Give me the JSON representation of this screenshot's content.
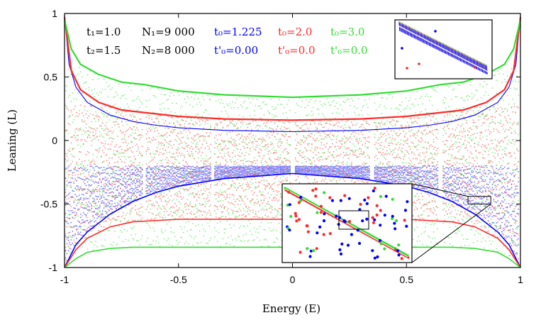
{
  "chart_data": {
    "type": "scatter",
    "xlabel": "Energy (E)",
    "ylabel": "Leaning (L)",
    "xlim": [
      -1,
      1
    ],
    "ylim": [
      -1,
      1
    ],
    "xticks": [
      "-1",
      "-0.5",
      "0",
      "0.5",
      "1"
    ],
    "yticks": [
      "-1",
      "-0.5",
      "0",
      "0.5",
      "1"
    ],
    "grid": false,
    "legend_placement": "top-left",
    "legend": {
      "row1": [
        {
          "text": "t₁=1.0",
          "color": "#000000"
        },
        {
          "text": "N₁=9 000",
          "color": "#000000"
        },
        {
          "text": "t₀=1.225",
          "color": "#0000ff"
        },
        {
          "text": "t₀=2.0",
          "color": "#ff2a2a"
        },
        {
          "text": "t₀=3.0",
          "color": "#33dd33"
        }
      ],
      "row2": [
        {
          "text": "t₂=1.5",
          "color": "#000000"
        },
        {
          "text": "N₂=8 000",
          "color": "#000000"
        },
        {
          "text": "t'₀=0.00",
          "color": "#0000ff"
        },
        {
          "text": "t'₀=0.0",
          "color": "#ff2a2a"
        },
        {
          "text": "t'₀=0.0",
          "color": "#33dd33"
        }
      ]
    },
    "series": [
      {
        "color": "#0000ff",
        "upper_curve": [
          [
            -1.0,
            0.99
          ],
          [
            -0.98,
            0.6
          ],
          [
            -0.95,
            0.42
          ],
          [
            -0.9,
            0.3
          ],
          [
            -0.8,
            0.2
          ],
          [
            -0.7,
            0.15
          ],
          [
            -0.6,
            0.12
          ],
          [
            -0.5,
            0.1
          ],
          [
            -0.3,
            0.08
          ],
          [
            0.0,
            0.07
          ],
          [
            0.3,
            0.08
          ],
          [
            0.5,
            0.1
          ],
          [
            0.6,
            0.12
          ],
          [
            0.7,
            0.15
          ],
          [
            0.8,
            0.2
          ],
          [
            0.9,
            0.3
          ],
          [
            0.95,
            0.42
          ],
          [
            0.98,
            0.6
          ],
          [
            1.0,
            0.99
          ]
        ],
        "lower_curve": [
          [
            -1.0,
            -1.0
          ],
          [
            -0.95,
            -0.82
          ],
          [
            -0.9,
            -0.72
          ],
          [
            -0.8,
            -0.58
          ],
          [
            -0.7,
            -0.48
          ],
          [
            -0.6,
            -0.41
          ],
          [
            -0.5,
            -0.36
          ],
          [
            -0.3,
            -0.3
          ],
          [
            0.0,
            -0.26
          ],
          [
            0.3,
            -0.3
          ],
          [
            0.5,
            -0.36
          ],
          [
            0.6,
            -0.41
          ],
          [
            0.7,
            -0.48
          ],
          [
            0.8,
            -0.58
          ],
          [
            0.9,
            -0.72
          ],
          [
            0.95,
            -0.82
          ],
          [
            1.0,
            -1.0
          ]
        ],
        "band": [
          -0.2,
          -0.95
        ]
      },
      {
        "color": "#ff2a2a",
        "upper_curve": [
          [
            -1.0,
            0.97
          ],
          [
            -0.97,
            0.55
          ],
          [
            -0.93,
            0.4
          ],
          [
            -0.85,
            0.3
          ],
          [
            -0.75,
            0.24
          ],
          [
            -0.65,
            0.22
          ],
          [
            -0.5,
            0.19
          ],
          [
            -0.3,
            0.17
          ],
          [
            0.0,
            0.16
          ],
          [
            0.3,
            0.17
          ],
          [
            0.5,
            0.19
          ],
          [
            0.65,
            0.22
          ],
          [
            0.75,
            0.24
          ],
          [
            0.85,
            0.3
          ],
          [
            0.93,
            0.4
          ],
          [
            0.97,
            0.55
          ],
          [
            1.0,
            0.97
          ]
        ],
        "lower_curve": [
          [
            -1.0,
            -1.0
          ],
          [
            -0.95,
            -0.86
          ],
          [
            -0.9,
            -0.77
          ],
          [
            -0.8,
            -0.68
          ],
          [
            -0.7,
            -0.64
          ],
          [
            -0.5,
            -0.62
          ],
          [
            -0.3,
            -0.62
          ],
          [
            0.0,
            -0.62
          ],
          [
            0.3,
            -0.62
          ],
          [
            0.5,
            -0.62
          ],
          [
            0.7,
            -0.64
          ],
          [
            0.8,
            -0.68
          ],
          [
            0.9,
            -0.77
          ],
          [
            0.95,
            -0.86
          ],
          [
            1.0,
            -1.0
          ]
        ],
        "band": [
          0.28,
          -0.95
        ]
      },
      {
        "color": "#33dd33",
        "upper_curve": [
          [
            -1.0,
            0.95
          ],
          [
            -0.97,
            0.72
          ],
          [
            -0.93,
            0.6
          ],
          [
            -0.85,
            0.52
          ],
          [
            -0.75,
            0.46
          ],
          [
            -0.65,
            0.44
          ],
          [
            -0.5,
            0.39
          ],
          [
            -0.3,
            0.36
          ],
          [
            0.0,
            0.34
          ],
          [
            0.3,
            0.36
          ],
          [
            0.5,
            0.39
          ],
          [
            0.65,
            0.44
          ],
          [
            0.75,
            0.46
          ],
          [
            0.85,
            0.52
          ],
          [
            0.93,
            0.6
          ],
          [
            0.97,
            0.72
          ],
          [
            1.0,
            0.95
          ]
        ],
        "lower_curve": [
          [
            -1.0,
            -1.0
          ],
          [
            -0.95,
            -0.93
          ],
          [
            -0.9,
            -0.88
          ],
          [
            -0.8,
            -0.85
          ],
          [
            -0.7,
            -0.84
          ],
          [
            -0.5,
            -0.84
          ],
          [
            -0.3,
            -0.84
          ],
          [
            0.0,
            -0.84
          ],
          [
            0.3,
            -0.84
          ],
          [
            0.5,
            -0.84
          ],
          [
            0.7,
            -0.84
          ],
          [
            0.8,
            -0.85
          ],
          [
            0.9,
            -0.88
          ],
          [
            0.95,
            -0.93
          ],
          [
            1.0,
            -1.0
          ]
        ],
        "band": [
          0.58,
          -0.98
        ]
      }
    ],
    "gap_energies": [
      -0.65,
      -0.35,
      0.0,
      0.35,
      0.65
    ],
    "zoom_box": {
      "x": [
        0.77,
        0.87
      ],
      "y": [
        -0.5,
        -0.44
      ]
    }
  }
}
